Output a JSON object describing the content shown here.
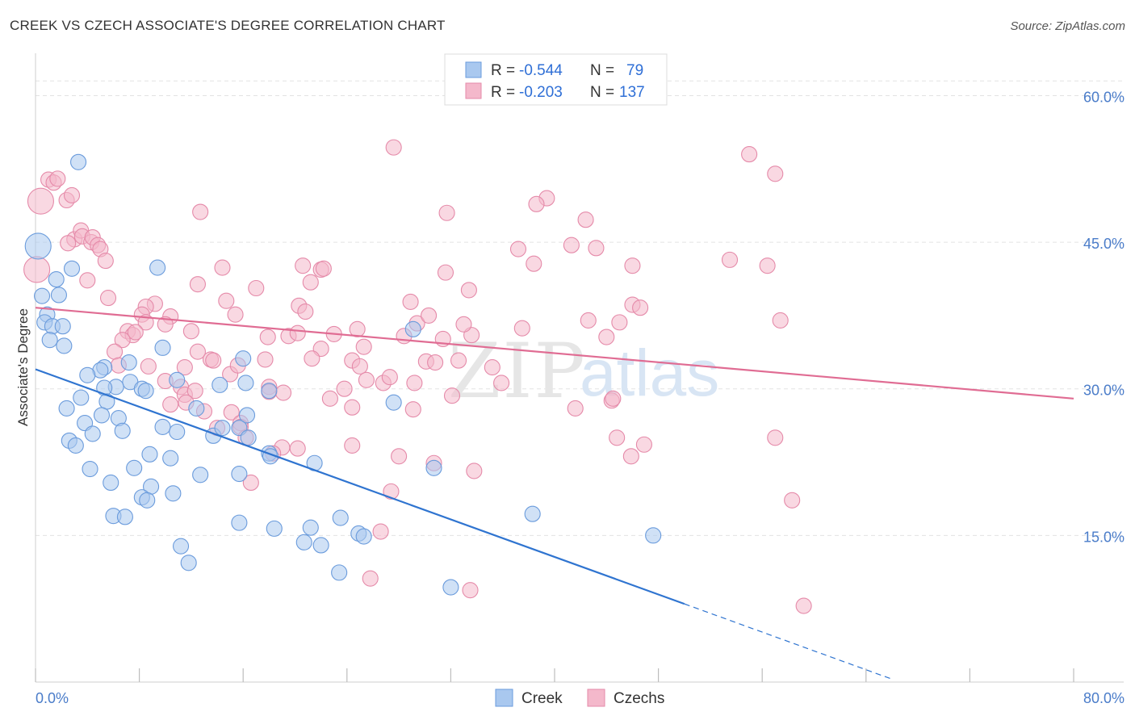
{
  "title": "CREEK VS CZECH ASSOCIATE'S DEGREE CORRELATION CHART",
  "source": "Source: ZipAtlas.com",
  "watermark": {
    "zip": "ZIP",
    "atlas": "atlas"
  },
  "colors": {
    "creek_fill": "#a9c8ef",
    "creek_stroke": "#6a9bdc",
    "creek_line": "#2f74d0",
    "czech_fill": "#f4b8cb",
    "czech_stroke": "#e58aa9",
    "czech_line": "#e06c93",
    "grid": "#e3e3e3",
    "tick_label": "#4a7cc9"
  },
  "legend": {
    "rows": [
      {
        "r_label": "R = ",
        "r_value": "-0.544",
        "n_label": "N = ",
        "n_value": "79"
      },
      {
        "r_label": "R = ",
        "r_value": "-0.203",
        "n_label": "N = ",
        "n_value": "137"
      }
    ]
  },
  "chart_data": {
    "type": "scatter",
    "ylabel": "Associate's Degree",
    "xlim": [
      0,
      80
    ],
    "ylim": [
      0,
      64
    ],
    "x_tick_labels": [
      {
        "v": 0,
        "t": "0.0%"
      },
      {
        "v": 80,
        "t": "80.0%"
      }
    ],
    "y_tick_labels": [
      {
        "v": 15,
        "t": "15.0%"
      },
      {
        "v": 30,
        "t": "30.0%"
      },
      {
        "v": 45,
        "t": "45.0%"
      },
      {
        "v": 60,
        "t": "60.0%"
      }
    ],
    "x_minor_ticks": [
      0,
      8,
      16,
      24,
      32,
      40,
      48,
      56,
      64,
      72,
      80
    ],
    "grid": true,
    "series": [
      {
        "name": "Creek",
        "trend": {
          "x0": 0,
          "y0": 32.0,
          "x1": 50,
          "y1": 8.0,
          "dash_to_x": 66,
          "dash_to_y": 0.3
        },
        "points": [
          [
            0.2,
            44.6,
            "L"
          ],
          [
            3.3,
            53.2
          ],
          [
            0.5,
            39.5
          ],
          [
            1.6,
            41.2
          ],
          [
            1.8,
            39.6
          ],
          [
            0.9,
            37.6
          ],
          [
            0.7,
            36.8
          ],
          [
            1.3,
            36.4
          ],
          [
            2.1,
            36.4
          ],
          [
            1.1,
            35.0
          ],
          [
            2.2,
            34.4
          ],
          [
            2.8,
            42.3
          ],
          [
            9.4,
            42.4
          ],
          [
            9.8,
            34.2
          ],
          [
            5.3,
            32.2
          ],
          [
            5.0,
            31.9
          ],
          [
            4.0,
            31.4
          ],
          [
            7.2,
            32.7
          ],
          [
            7.3,
            30.7
          ],
          [
            8.2,
            30.0
          ],
          [
            8.5,
            29.8
          ],
          [
            10.9,
            30.9
          ],
          [
            14.2,
            30.4
          ],
          [
            16.0,
            33.1
          ],
          [
            16.2,
            30.6
          ],
          [
            16.3,
            27.3
          ],
          [
            15.7,
            26.0
          ],
          [
            18.0,
            29.8
          ],
          [
            6.2,
            30.2
          ],
          [
            5.3,
            30.1
          ],
          [
            3.5,
            29.1
          ],
          [
            2.4,
            28.0
          ],
          [
            5.5,
            28.7
          ],
          [
            3.8,
            26.5
          ],
          [
            5.1,
            27.3
          ],
          [
            6.4,
            27.0
          ],
          [
            6.7,
            25.7
          ],
          [
            4.4,
            25.4
          ],
          [
            9.8,
            26.1
          ],
          [
            10.9,
            25.6
          ],
          [
            12.4,
            28.0
          ],
          [
            13.7,
            25.2
          ],
          [
            14.4,
            26.0
          ],
          [
            16.4,
            25.0
          ],
          [
            2.6,
            24.7
          ],
          [
            3.1,
            24.2
          ],
          [
            8.8,
            23.3
          ],
          [
            10.4,
            22.9
          ],
          [
            4.2,
            21.8
          ],
          [
            7.6,
            21.9
          ],
          [
            12.7,
            21.2
          ],
          [
            15.7,
            21.3
          ],
          [
            18.0,
            23.4
          ],
          [
            18.1,
            23.1
          ],
          [
            21.5,
            22.4
          ],
          [
            5.8,
            20.4
          ],
          [
            8.9,
            20.0
          ],
          [
            10.6,
            19.3
          ],
          [
            8.2,
            18.9
          ],
          [
            8.6,
            18.6
          ],
          [
            6.0,
            17.0
          ],
          [
            6.9,
            16.9
          ],
          [
            15.7,
            16.3
          ],
          [
            18.4,
            15.7
          ],
          [
            21.2,
            15.8
          ],
          [
            23.5,
            16.8
          ],
          [
            24.9,
            15.2
          ],
          [
            25.3,
            14.9
          ],
          [
            20.7,
            14.3
          ],
          [
            22.0,
            14.0
          ],
          [
            11.2,
            13.9
          ],
          [
            11.8,
            12.2
          ],
          [
            23.4,
            11.2
          ],
          [
            27.6,
            28.6
          ],
          [
            29.1,
            36.1
          ],
          [
            30.7,
            21.9
          ],
          [
            32.0,
            9.7
          ],
          [
            38.3,
            17.2
          ],
          [
            47.6,
            15.0
          ]
        ]
      },
      {
        "name": "Czechs",
        "trend": {
          "x0": 0,
          "y0": 38.3,
          "x1": 80,
          "y1": 29.0
        },
        "points": [
          [
            0.1,
            42.2,
            "L"
          ],
          [
            0.4,
            49.2,
            "L"
          ],
          [
            1.0,
            51.4
          ],
          [
            1.4,
            51.1
          ],
          [
            1.7,
            51.5
          ],
          [
            2.4,
            49.3
          ],
          [
            2.8,
            49.8
          ],
          [
            3.0,
            45.3
          ],
          [
            2.5,
            44.9
          ],
          [
            3.5,
            46.2
          ],
          [
            3.6,
            45.6
          ],
          [
            4.3,
            45.0
          ],
          [
            4.4,
            45.5
          ],
          [
            4.8,
            44.7
          ],
          [
            5.0,
            44.3
          ],
          [
            5.4,
            43.1
          ],
          [
            4.0,
            41.1
          ],
          [
            5.6,
            39.3
          ],
          [
            9.2,
            38.7
          ],
          [
            8.5,
            38.4
          ],
          [
            8.2,
            37.6
          ],
          [
            10.4,
            37.4
          ],
          [
            10.0,
            36.6
          ],
          [
            8.5,
            36.8
          ],
          [
            7.1,
            35.9
          ],
          [
            7.5,
            35.5
          ],
          [
            7.7,
            35.8
          ],
          [
            6.7,
            35.0
          ],
          [
            6.1,
            33.8
          ],
          [
            6.4,
            32.4
          ],
          [
            8.7,
            32.3
          ],
          [
            11.5,
            32.2
          ],
          [
            12.0,
            35.9
          ],
          [
            12.5,
            33.8
          ],
          [
            13.5,
            33.0
          ],
          [
            13.7,
            32.9
          ],
          [
            15.0,
            31.5
          ],
          [
            15.6,
            32.4
          ],
          [
            10.0,
            30.8
          ],
          [
            11.2,
            30.2
          ],
          [
            11.5,
            29.4
          ],
          [
            12.3,
            29.8
          ],
          [
            10.4,
            28.4
          ],
          [
            11.6,
            28.6
          ],
          [
            13.0,
            27.7
          ],
          [
            15.1,
            27.6
          ],
          [
            14.0,
            26.0
          ],
          [
            15.8,
            26.5
          ],
          [
            15.8,
            26.1
          ],
          [
            16.2,
            25.0
          ],
          [
            12.5,
            40.7
          ],
          [
            12.7,
            48.1
          ],
          [
            14.4,
            42.4
          ],
          [
            14.7,
            39.0
          ],
          [
            15.4,
            37.6
          ],
          [
            17.0,
            40.3
          ],
          [
            18.0,
            30.2
          ],
          [
            18.0,
            29.7
          ],
          [
            17.7,
            33.0
          ],
          [
            17.9,
            35.3
          ],
          [
            19.1,
            29.6
          ],
          [
            19.5,
            35.4
          ],
          [
            20.2,
            35.7
          ],
          [
            20.3,
            38.5
          ],
          [
            20.8,
            37.9
          ],
          [
            20.6,
            42.6
          ],
          [
            22.0,
            42.2
          ],
          [
            22.2,
            42.3
          ],
          [
            21.2,
            40.9
          ],
          [
            22.0,
            34.1
          ],
          [
            21.3,
            33.1
          ],
          [
            23.0,
            35.6
          ],
          [
            24.8,
            36.1
          ],
          [
            24.4,
            32.9
          ],
          [
            25.0,
            32.3
          ],
          [
            25.3,
            34.3
          ],
          [
            23.8,
            30.0
          ],
          [
            22.7,
            29.0
          ],
          [
            24.4,
            28.1
          ],
          [
            25.5,
            30.9
          ],
          [
            20.2,
            23.9
          ],
          [
            19.0,
            24.0
          ],
          [
            18.3,
            23.4
          ],
          [
            16.6,
            20.4
          ],
          [
            24.4,
            24.2
          ],
          [
            26.8,
            30.6
          ],
          [
            27.3,
            31.2
          ],
          [
            28.4,
            35.4
          ],
          [
            28.9,
            38.9
          ],
          [
            29.4,
            36.7
          ],
          [
            29.2,
            30.6
          ],
          [
            29.1,
            27.9
          ],
          [
            30.1,
            32.8
          ],
          [
            30.8,
            32.7
          ],
          [
            30.7,
            22.4
          ],
          [
            28.0,
            23.1
          ],
          [
            27.4,
            19.5
          ],
          [
            26.6,
            15.4
          ],
          [
            25.8,
            10.6
          ],
          [
            27.6,
            54.7
          ],
          [
            31.7,
            48.0
          ],
          [
            31.6,
            41.9
          ],
          [
            31.4,
            35.1
          ],
          [
            32.1,
            29.3
          ],
          [
            32.6,
            32.9
          ],
          [
            33.4,
            40.1
          ],
          [
            33.6,
            35.5
          ],
          [
            33.0,
            36.6
          ],
          [
            35.2,
            32.2
          ],
          [
            35.9,
            30.6
          ],
          [
            37.2,
            44.3
          ],
          [
            37.5,
            36.2
          ],
          [
            38.4,
            42.8
          ],
          [
            39.4,
            49.5
          ],
          [
            38.6,
            48.9
          ],
          [
            41.3,
            44.7
          ],
          [
            41.6,
            28.0
          ],
          [
            42.4,
            47.3
          ],
          [
            42.6,
            37.0
          ],
          [
            43.2,
            44.4
          ],
          [
            44.0,
            35.3
          ],
          [
            44.4,
            28.8
          ],
          [
            44.5,
            29.0
          ],
          [
            45.0,
            36.8
          ],
          [
            46.0,
            38.6
          ],
          [
            46.0,
            42.6
          ],
          [
            46.6,
            38.3
          ],
          [
            46.9,
            24.3
          ],
          [
            44.8,
            25.0
          ],
          [
            45.9,
            23.1
          ],
          [
            33.8,
            21.6
          ],
          [
            33.5,
            9.4
          ],
          [
            55.0,
            54.0
          ],
          [
            57.0,
            52.0
          ],
          [
            56.4,
            42.6
          ],
          [
            53.5,
            43.2
          ],
          [
            57.4,
            37.0
          ],
          [
            57.0,
            25.0
          ],
          [
            58.3,
            18.6
          ],
          [
            59.2,
            7.8
          ],
          [
            30.3,
            37.5
          ]
        ]
      }
    ]
  },
  "bottom_legend": [
    "Creek",
    "Czechs"
  ]
}
